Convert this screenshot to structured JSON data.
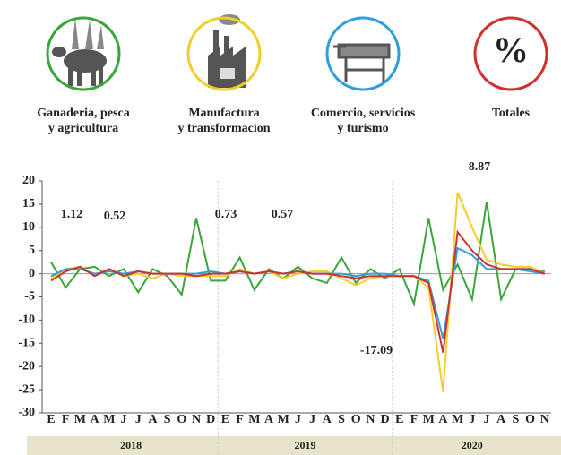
{
  "chart_data": {
    "type": "line",
    "categories": [
      "E",
      "F",
      "M",
      "A",
      "M",
      "J",
      "J",
      "A",
      "S",
      "O",
      "N",
      "D",
      "E",
      "F",
      "M",
      "A",
      "M",
      "J",
      "J",
      "A",
      "S",
      "O",
      "N",
      "D",
      "E",
      "F",
      "M",
      "A",
      "M",
      "J",
      "J",
      "A",
      "S",
      "O",
      "N"
    ],
    "groups": [
      "2018",
      "2019",
      "2020"
    ],
    "series": [
      {
        "name": "Ganaderia, pesca\ny agricultura",
        "color": "#3aa53a",
        "values": [
          2.5,
          -3,
          1,
          1.5,
          -0.5,
          1,
          -4,
          1,
          -0.5,
          -4.5,
          12,
          -1.5,
          -1.5,
          3.5,
          -3.5,
          1,
          -1,
          1.5,
          -1,
          -2,
          3.5,
          -2,
          1,
          -1,
          1,
          -6.5,
          12,
          -3.5,
          2,
          -5.5,
          15.5,
          -5.5,
          1,
          1,
          0.5
        ]
      },
      {
        "name": "Manufactura\ny transformacion",
        "color": "#f2cd2e",
        "values": [
          -1,
          1,
          1.5,
          -0.5,
          1,
          -0.5,
          0,
          -1,
          0,
          -0.5,
          -0.5,
          -0.5,
          -0.5,
          1,
          0,
          0.5,
          -1,
          0,
          0.5,
          0.5,
          -1,
          -2.5,
          -1,
          -0.5,
          -0.5,
          -0.5,
          -3,
          -25.5,
          17.5,
          10,
          3,
          2,
          1.5,
          1.5,
          0
        ]
      },
      {
        "name": "Comercio, servicios\ny turismo",
        "color": "#2f9fdc",
        "values": [
          -0.5,
          1,
          1,
          0,
          0.5,
          0,
          0.5,
          0,
          0,
          0,
          0,
          0.5,
          0,
          0.5,
          0,
          0.5,
          0,
          0.5,
          0,
          0,
          0,
          -0.5,
          0,
          0,
          -0.5,
          -0.5,
          -1.5,
          -14,
          5.5,
          4,
          1,
          1,
          1,
          0.5,
          0
        ]
      },
      {
        "name": "Totales",
        "symbol": "%",
        "color": "#d0312d",
        "values": [
          -1.5,
          0.5,
          1.5,
          -0.5,
          1,
          -0.5,
          0.5,
          0,
          0,
          0,
          -0.5,
          0,
          0,
          0.5,
          0,
          0.5,
          0,
          0.5,
          0,
          0,
          -0.5,
          -1,
          -0.5,
          -0.5,
          -0.5,
          -0.5,
          -2,
          -17,
          9,
          5,
          2,
          1,
          1,
          1,
          0
        ]
      }
    ],
    "annotations": [
      1.12,
      0.52,
      0.73,
      0.57,
      -17.09,
      8.87
    ],
    "ylim": [
      -30,
      20
    ],
    "yticks": [
      -30,
      -25,
      -20,
      -15,
      -10,
      -5,
      0,
      5,
      10,
      15,
      20
    ]
  }
}
